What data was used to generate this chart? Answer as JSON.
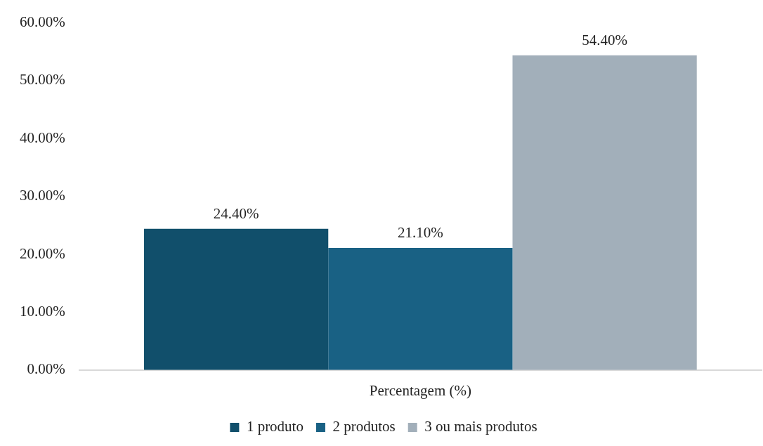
{
  "chart_data": {
    "type": "bar",
    "categories": [
      "Percentagem (%)"
    ],
    "series": [
      {
        "name": "1 produto",
        "color": "#114f6b",
        "values": [
          24.4
        ],
        "value_labels": [
          "24.40%"
        ]
      },
      {
        "name": "2 produtos",
        "color": "#196184",
        "values": [
          21.1
        ],
        "value_labels": [
          "21.10%"
        ]
      },
      {
        "name": "3 ou mais produtos",
        "color": "#a2afba",
        "values": [
          54.4
        ],
        "value_labels": [
          "54.40%"
        ]
      }
    ],
    "ylim": [
      0,
      60
    ],
    "yticks": [
      {
        "value": 0,
        "label": "0.00%"
      },
      {
        "value": 10,
        "label": "10.00%"
      },
      {
        "value": 20,
        "label": "20.00%"
      },
      {
        "value": 30,
        "label": "30.00%"
      },
      {
        "value": 40,
        "label": "40.00%"
      },
      {
        "value": 50,
        "label": "50.00%"
      },
      {
        "value": 60,
        "label": "60.00%"
      }
    ],
    "grid": false,
    "legend": "bottom"
  }
}
